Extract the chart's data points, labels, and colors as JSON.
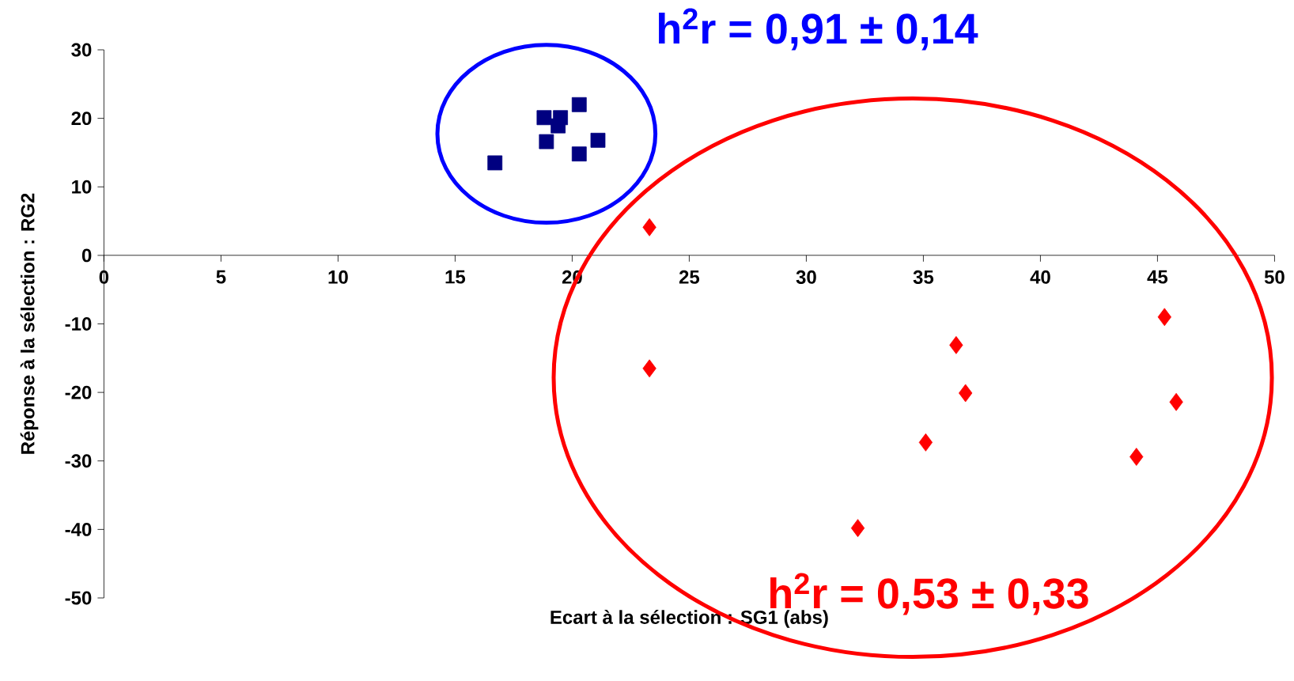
{
  "chart_data": {
    "type": "scatter",
    "xlabel": "Ecart à la sélection : SG1 (abs)",
    "ylabel": "Réponse à la sélection : RG2",
    "xlim": [
      0,
      50
    ],
    "xticks": [
      0,
      5,
      10,
      15,
      20,
      25,
      30,
      35,
      40,
      45,
      50
    ],
    "ylim": [
      -50,
      30
    ],
    "yticks": [
      -50,
      -40,
      -30,
      -20,
      -10,
      0,
      10,
      20,
      30
    ],
    "grid": false,
    "series": [
      {
        "color": "#000080",
        "marker": "square",
        "x": [
          16.7,
          18.8,
          19.5,
          19.4,
          18.9,
          20.3,
          20.3,
          21.1
        ],
        "values": [
          13.5,
          20.1,
          20.1,
          18.9,
          16.6,
          22.0,
          14.8,
          16.8
        ]
      },
      {
        "color": "#ff0000",
        "marker": "diamond",
        "x": [
          23.3,
          23.3,
          32.2,
          35.1,
          36.4,
          36.8,
          44.1,
          45.3,
          45.8
        ],
        "values": [
          4.1,
          -16.5,
          -39.8,
          -27.3,
          -13.1,
          -20.1,
          -29.4,
          -9.0,
          -21.4
        ]
      }
    ],
    "annotations": [
      "h$^{2}$r = 0,91 ± 0,14",
      "h$^{2}$r = 0,53 ± 0,33"
    ]
  }
}
